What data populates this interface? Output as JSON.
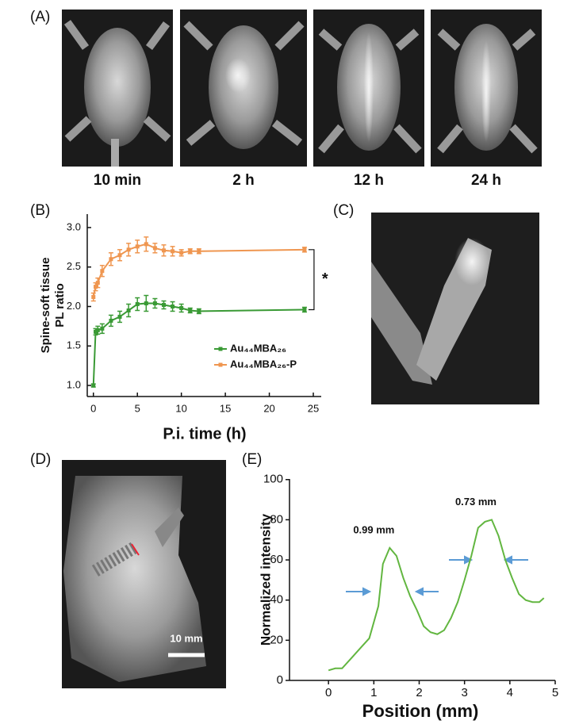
{
  "panels": {
    "a": {
      "label": "(A)",
      "captions": [
        "10 min",
        "2 h",
        "12 h",
        "24 h"
      ]
    },
    "c": {
      "label": "(C)"
    },
    "d": {
      "label": "(D)",
      "scale_bar": "10 mm"
    }
  },
  "chart_data": [
    {
      "type": "line",
      "label": "(B)",
      "xlabel": "P.i. time (h)",
      "ylabel": [
        "Spine-soft tissue",
        "PL ratio"
      ],
      "x": [
        0,
        0.25,
        0.5,
        1,
        2,
        3,
        4,
        5,
        6,
        7,
        8,
        9,
        10,
        11,
        12,
        24
      ],
      "series": [
        {
          "name": "Au₄₄MBA₂₆",
          "color": "#3a9a35",
          "values": [
            1.0,
            1.68,
            1.7,
            1.72,
            1.82,
            1.87,
            1.95,
            2.03,
            2.04,
            2.04,
            2.02,
            2.0,
            1.98,
            1.95,
            1.94,
            1.96
          ],
          "errors": [
            0.02,
            0.04,
            0.05,
            0.06,
            0.07,
            0.07,
            0.08,
            0.08,
            0.1,
            0.06,
            0.05,
            0.06,
            0.05,
            0.03,
            0.03,
            0.03
          ]
        },
        {
          "name": "Au₄₄MBA₂₆-P",
          "color": "#ef9650",
          "values": [
            2.12,
            2.25,
            2.3,
            2.45,
            2.6,
            2.65,
            2.72,
            2.76,
            2.79,
            2.74,
            2.71,
            2.7,
            2.68,
            2.7,
            2.7,
            2.72
          ],
          "errors": [
            0.05,
            0.05,
            0.06,
            0.07,
            0.08,
            0.07,
            0.08,
            0.08,
            0.09,
            0.06,
            0.07,
            0.06,
            0.04,
            0.03,
            0.03,
            0.03
          ]
        }
      ],
      "annotation": "*",
      "xlim": [
        -0.7,
        25.9
      ],
      "xticks": [
        0,
        5,
        10,
        15,
        20,
        25
      ],
      "ylim": [
        0.86,
        3.17
      ],
      "yticks": [
        {
          "value": 1,
          "label": "1.0"
        },
        1.5,
        {
          "value": 2,
          "label": "2.0"
        },
        2.5,
        {
          "value": 3,
          "label": "3.0"
        }
      ]
    },
    {
      "type": "line",
      "label": "(E)",
      "xlabel": "Position (mm)",
      "ylabel": [
        "Normalized intensity"
      ],
      "color": "#62b640",
      "x": [
        0,
        0.15,
        0.3,
        0.5,
        0.7,
        0.9,
        1.1,
        1.2,
        1.35,
        1.5,
        1.65,
        1.8,
        1.95,
        2.1,
        2.25,
        2.4,
        2.55,
        2.7,
        2.85,
        3.0,
        3.15,
        3.3,
        3.45,
        3.6,
        3.75,
        3.9,
        4.05,
        4.2,
        4.35,
        4.5,
        4.65,
        4.75
      ],
      "values": [
        5,
        6,
        6,
        11,
        16,
        21,
        37,
        58,
        66,
        62,
        51,
        42,
        35,
        27,
        24,
        23,
        25,
        31,
        39,
        50,
        62,
        76,
        79,
        80,
        72,
        60,
        51,
        43,
        40,
        39,
        39,
        41
      ],
      "annotations": [
        "0.99 mm",
        "0.73 mm"
      ],
      "xlim": [
        -0.86,
        5
      ],
      "xticks": [
        0,
        1,
        2,
        3,
        4,
        5
      ],
      "ylim": [
        0,
        100.3
      ],
      "yticks": [
        0,
        20,
        40,
        60,
        80,
        100
      ]
    }
  ]
}
